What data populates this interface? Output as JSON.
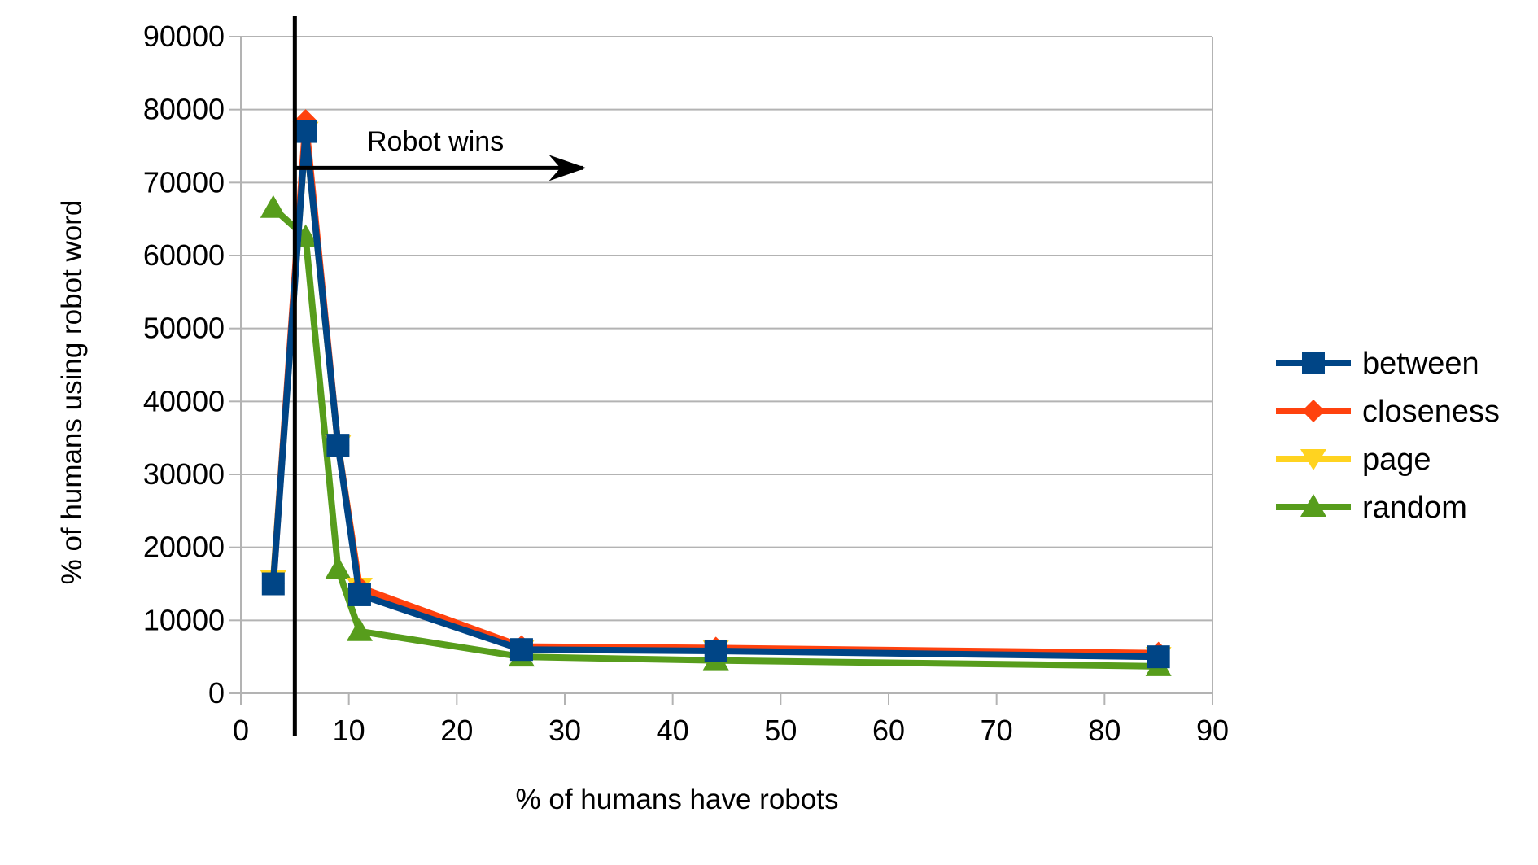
{
  "chart_data": {
    "type": "line",
    "title": "",
    "xlabel": "% of humans have robots",
    "ylabel": "% of humans using robot word",
    "xlim": [
      0,
      90
    ],
    "ylim": [
      0,
      90000
    ],
    "xticks": [
      0,
      10,
      20,
      30,
      40,
      50,
      60,
      70,
      80,
      90
    ],
    "yticks": [
      0,
      10000,
      20000,
      30000,
      40000,
      50000,
      60000,
      70000,
      80000,
      90000
    ],
    "grid": "horizontal",
    "legend_position": "right",
    "x": [
      3,
      6,
      9,
      11,
      26,
      44,
      85
    ],
    "series": [
      {
        "name": "between",
        "marker": "square",
        "color": "#004586",
        "values": [
          15000,
          77000,
          34000,
          13500,
          6000,
          5800,
          5000
        ]
      },
      {
        "name": "closeness",
        "marker": "diamond",
        "color": "#ff420e",
        "values": [
          15000,
          78500,
          34000,
          14500,
          6400,
          6200,
          5500
        ]
      },
      {
        "name": "page",
        "marker": "triangle-down",
        "color": "#ffd320",
        "values": [
          15500,
          77000,
          34000,
          14500,
          6000,
          5900,
          5000
        ]
      },
      {
        "name": "random",
        "marker": "triangle-up",
        "color": "#579d1c",
        "values": [
          66500,
          62500,
          17000,
          8500,
          5000,
          4500,
          3700
        ]
      }
    ],
    "annotations": {
      "vertical_line_x": 5,
      "arrow_label": "Robot wins",
      "arrow_y": 72000,
      "arrow_x_start": 5,
      "arrow_x_end": 32
    }
  }
}
